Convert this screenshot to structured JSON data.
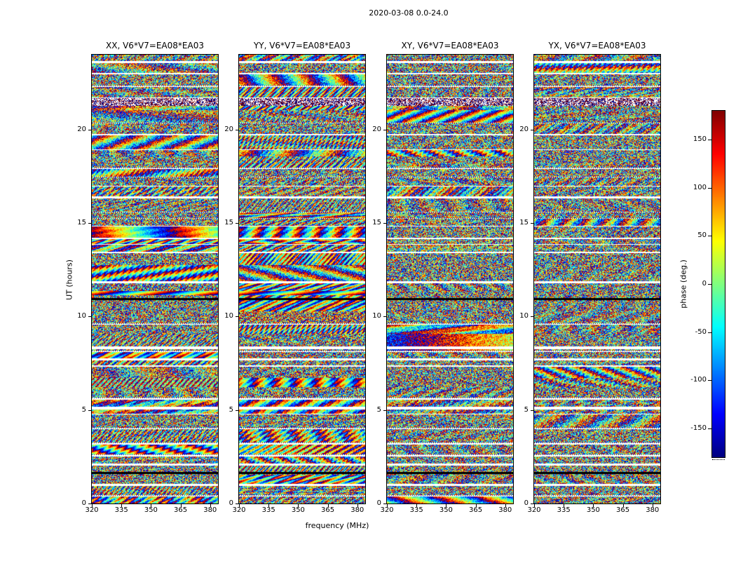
{
  "chart_data": {
    "type": "heatmap",
    "title": "2020-03-08 0.0-24.0",
    "xlabel": "frequency (MHz)",
    "ylabel": "UT (hours)",
    "xlim": [
      320,
      384
    ],
    "ylim": [
      0,
      24
    ],
    "x_ticks": [
      320,
      335,
      350,
      365,
      380
    ],
    "y_ticks": [
      0,
      5,
      10,
      15,
      20
    ],
    "panels": [
      {
        "id": "XX",
        "title": "XX, V6*V7=EA08*EA03",
        "coherent": true
      },
      {
        "id": "YY",
        "title": "YY, V6*V7=EA08*EA03",
        "coherent": true
      },
      {
        "id": "XY",
        "title": "XY, V6*V7=EA08*EA03",
        "coherent": false
      },
      {
        "id": "YX",
        "title": "YX, V6*V7=EA08*EA03",
        "coherent": false
      }
    ],
    "colorbar": {
      "label": "phase (deg.)",
      "ticks": [
        150,
        100,
        50,
        0,
        -50,
        -100,
        -150
      ],
      "vmin": -180,
      "vmax": 180,
      "colormap": "jet"
    },
    "features": {
      "data_gap_ut": [
        5.15,
        8.35
      ],
      "flagged_black_ut": [
        1.7,
        11.0
      ],
      "strong_fringe_ut": 11.35,
      "noisy_band_ut": 21.5
    },
    "description": "Interferometric visibility phase (deg.) vs frequency (MHz, x) and UT time (hours, y) for baseline EA08*EA03, four correlation products XX, YY, XY, YX; noise-like wrapped phase rendered with a jet colormap, with horizontal white data gaps and black flagged rows shared across panels."
  }
}
